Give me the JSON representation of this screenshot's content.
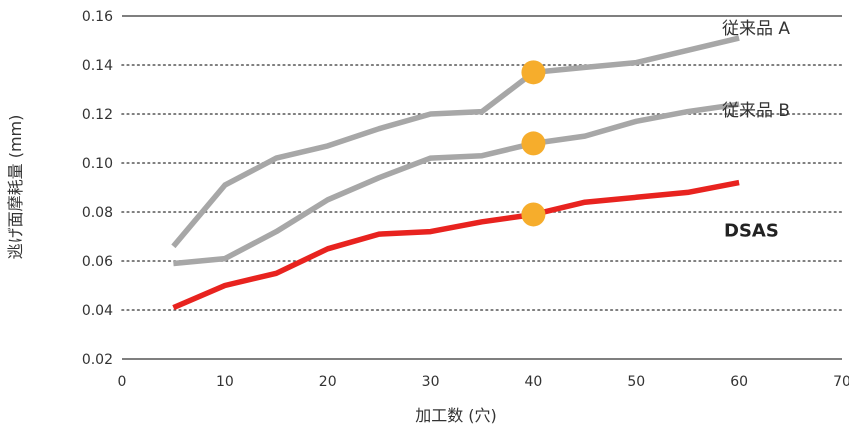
{
  "chart_data": {
    "type": "line",
    "xlabel": "加工数 (穴)",
    "ylabel": "逃げ面摩耗量 (mm)",
    "xlim": [
      0,
      70
    ],
    "ylim": [
      0.02,
      0.16
    ],
    "x_ticks": [
      "0",
      "10",
      "20",
      "30",
      "40",
      "50",
      "60",
      "70"
    ],
    "y_ticks": [
      "0.02",
      "0.04",
      "0.06",
      "0.08",
      "0.10",
      "0.12",
      "0.14",
      "0.16"
    ],
    "grid": "horizontal dotted",
    "series": [
      {
        "name": "従来品 A",
        "color": "#a7a7a7",
        "label_bold": false,
        "x": [
          5,
          10,
          15,
          20,
          25,
          30,
          35,
          40,
          45,
          50,
          55,
          60
        ],
        "y": [
          0.066,
          0.091,
          0.102,
          0.107,
          0.114,
          0.12,
          0.121,
          0.137,
          0.139,
          0.141,
          0.146,
          0.151
        ]
      },
      {
        "name": "従来品 B",
        "color": "#a7a7a7",
        "label_bold": false,
        "x": [
          5,
          10,
          15,
          20,
          25,
          30,
          35,
          40,
          45,
          50,
          55,
          60
        ],
        "y": [
          0.059,
          0.061,
          0.072,
          0.085,
          0.094,
          0.102,
          0.103,
          0.108,
          0.111,
          0.117,
          0.121,
          0.124
        ]
      },
      {
        "name": "DSAS",
        "color": "#e8231f",
        "label_bold": true,
        "x": [
          5,
          10,
          15,
          20,
          25,
          30,
          35,
          40,
          45,
          50,
          55,
          60
        ],
        "y": [
          0.041,
          0.05,
          0.055,
          0.065,
          0.071,
          0.072,
          0.076,
          0.079,
          0.084,
          0.086,
          0.088,
          0.092
        ]
      }
    ],
    "highlight_markers": {
      "x": 40,
      "color": "#f6ad2c",
      "y": [
        0.137,
        0.108,
        0.079
      ]
    }
  }
}
